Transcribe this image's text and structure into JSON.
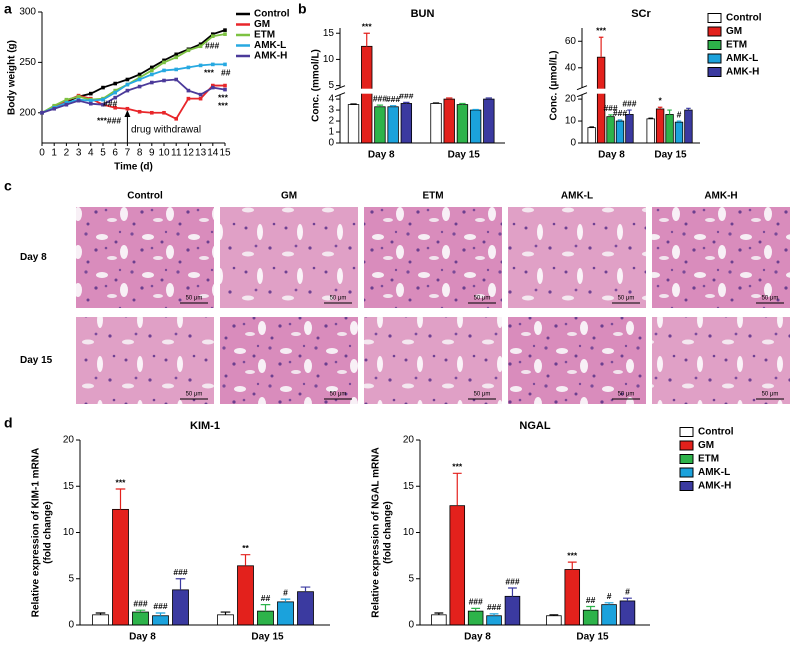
{
  "panel_labels": [
    "a",
    "b",
    "c",
    "d"
  ],
  "chart_data": [
    {
      "type": "line",
      "ylabel": "Body weight (g)",
      "xlabel": "Time (d)",
      "x": [
        0,
        1,
        2,
        3,
        4,
        5,
        6,
        7,
        8,
        9,
        10,
        11,
        12,
        13,
        14,
        15
      ],
      "xlim": [
        0,
        15
      ],
      "xticks": [
        0,
        1,
        2,
        3,
        4,
        5,
        6,
        7,
        8,
        9,
        10,
        11,
        12,
        13,
        14,
        15
      ],
      "ylim": [
        170,
        300
      ],
      "yticks": [
        200,
        250,
        300
      ],
      "legend": true,
      "series": [
        {
          "name": "Control",
          "color": "#000000",
          "values": [
            200,
            206,
            211,
            216,
            219,
            225,
            229,
            233,
            238,
            245,
            252,
            258,
            263,
            268,
            278,
            282
          ]
        },
        {
          "name": "GM",
          "color": "#e8262a",
          "values": [
            200,
            206,
            212,
            217,
            214,
            208,
            205,
            204,
            201,
            200,
            200,
            194,
            214,
            214,
            227,
            227
          ]
        },
        {
          "name": "ETM",
          "color": "#7dc242",
          "values": [
            200,
            207,
            213,
            216,
            213,
            214,
            222,
            228,
            235,
            242,
            250,
            255,
            262,
            266,
            276,
            278
          ]
        },
        {
          "name": "AMK-L",
          "color": "#27a9e1",
          "values": [
            200,
            205,
            210,
            213,
            212,
            213,
            220,
            228,
            233,
            238,
            242,
            243,
            245,
            247,
            248,
            248
          ]
        },
        {
          "name": "AMK-H",
          "color": "#4b3a9a",
          "values": [
            200,
            204,
            208,
            212,
            209,
            208,
            215,
            222,
            226,
            230,
            232,
            233,
            222,
            218,
            225,
            223
          ]
        }
      ],
      "annotations": [
        "drug withdrawal",
        "###",
        "***",
        "##",
        "***",
        "***",
        "###",
        "***###"
      ]
    },
    {
      "type": "bar",
      "title": "BUN",
      "ylabel": "Conc. (mmol/L)",
      "categories": [
        "Day 8",
        "Day 15"
      ],
      "ylim": [
        0,
        16
      ],
      "ybreak": [
        4.4,
        4.6
      ],
      "yticks": [
        0,
        1,
        2,
        3,
        4,
        5,
        10,
        15
      ],
      "series": [
        {
          "name": "Control",
          "color": "#ffffff",
          "values": [
            3.5,
            3.6
          ],
          "errors": [
            0.05,
            0.05
          ],
          "marks": [
            null,
            null
          ]
        },
        {
          "name": "GM",
          "color": "#e3211c",
          "values": [
            12.5,
            4.0
          ],
          "errors": [
            2.5,
            0.1
          ],
          "marks": [
            "***",
            null
          ]
        },
        {
          "name": "ETM",
          "color": "#2db34a",
          "values": [
            3.3,
            3.5
          ],
          "errors": [
            0.15,
            0.1
          ],
          "marks": [
            "###",
            null
          ]
        },
        {
          "name": "AMK-L",
          "color": "#1ba2dc",
          "values": [
            3.3,
            3.0
          ],
          "errors": [
            0.1,
            0.05
          ],
          "marks": [
            "###",
            null
          ]
        },
        {
          "name": "AMK-H",
          "color": "#3b3aa0",
          "values": [
            3.6,
            4.0
          ],
          "errors": [
            0.1,
            0.1
          ],
          "marks": [
            "###",
            null
          ]
        }
      ]
    },
    {
      "type": "bar",
      "title": "SCr",
      "ylabel": "Conc. (μmol/L)",
      "categories": [
        "Day 8",
        "Day 15"
      ],
      "ylim": [
        0,
        70
      ],
      "ybreak": [
        22,
        25
      ],
      "yticks": [
        0,
        10,
        20,
        40,
        60
      ],
      "legend": true,
      "series": [
        {
          "name": "Control",
          "color": "#ffffff",
          "values": [
            7,
            11
          ],
          "errors": [
            0.3,
            0.3
          ],
          "marks": [
            null,
            null
          ]
        },
        {
          "name": "GM",
          "color": "#e3211c",
          "values": [
            48,
            15.5
          ],
          "errors": [
            15,
            0.8
          ],
          "marks": [
            "***",
            "*"
          ]
        },
        {
          "name": "ETM",
          "color": "#2db34a",
          "values": [
            12,
            13
          ],
          "errors": [
            0.8,
            2
          ],
          "marks": [
            "###",
            null
          ]
        },
        {
          "name": "AMK-L",
          "color": "#1ba2dc",
          "values": [
            10,
            9.5
          ],
          "errors": [
            0.5,
            0.5
          ],
          "marks": [
            "###",
            "#"
          ]
        },
        {
          "name": "AMK-H",
          "color": "#3b3aa0",
          "values": [
            13,
            15
          ],
          "errors": [
            2,
            0.8
          ],
          "marks": [
            "###",
            null
          ]
        }
      ]
    },
    {
      "type": "bar",
      "title": "KIM-1",
      "ylabel": [
        "Relative expression of KIM-1 mRNA",
        "(fold change)"
      ],
      "categories": [
        "Day 8",
        "Day 15"
      ],
      "ylim": [
        0,
        20
      ],
      "yticks": [
        0,
        5,
        10,
        15,
        20
      ],
      "series": [
        {
          "name": "Control",
          "color": "#ffffff",
          "values": [
            1.1,
            1.1
          ],
          "errors": [
            0.2,
            0.3
          ],
          "marks": [
            null,
            null
          ]
        },
        {
          "name": "GM",
          "color": "#e3211c",
          "values": [
            12.5,
            6.4
          ],
          "errors": [
            2.2,
            1.2
          ],
          "marks": [
            "***",
            "**"
          ]
        },
        {
          "name": "ETM",
          "color": "#2db34a",
          "values": [
            1.4,
            1.5
          ],
          "errors": [
            0.2,
            0.7
          ],
          "marks": [
            "###",
            "##"
          ]
        },
        {
          "name": "AMK-L",
          "color": "#1ba2dc",
          "values": [
            1.0,
            2.5
          ],
          "errors": [
            0.3,
            0.3
          ],
          "marks": [
            "###",
            "#"
          ]
        },
        {
          "name": "AMK-H",
          "color": "#3b3aa0",
          "values": [
            3.8,
            3.6
          ],
          "errors": [
            1.2,
            0.5
          ],
          "marks": [
            "###",
            null
          ]
        }
      ]
    },
    {
      "type": "bar",
      "title": "NGAL",
      "ylabel": [
        "Relative expression of NGAL mRNA",
        "(fold change)"
      ],
      "categories": [
        "Day 8",
        "Day 15"
      ],
      "ylim": [
        0,
        20
      ],
      "yticks": [
        0,
        5,
        10,
        15,
        20
      ],
      "legend": true,
      "series": [
        {
          "name": "Control",
          "color": "#ffffff",
          "values": [
            1.1,
            1.0
          ],
          "errors": [
            0.2,
            0.1
          ],
          "marks": [
            null,
            null
          ]
        },
        {
          "name": "GM",
          "color": "#e3211c",
          "values": [
            12.9,
            6.0
          ],
          "errors": [
            3.5,
            0.8
          ],
          "marks": [
            "***",
            "***"
          ]
        },
        {
          "name": "ETM",
          "color": "#2db34a",
          "values": [
            1.5,
            1.6
          ],
          "errors": [
            0.3,
            0.4
          ],
          "marks": [
            "###",
            "##"
          ]
        },
        {
          "name": "AMK-L",
          "color": "#1ba2dc",
          "values": [
            1.0,
            2.2
          ],
          "errors": [
            0.2,
            0.2
          ],
          "marks": [
            "###",
            "#"
          ]
        },
        {
          "name": "AMK-H",
          "color": "#3b3aa0",
          "values": [
            3.1,
            2.6
          ],
          "errors": [
            0.9,
            0.3
          ],
          "marks": [
            "###",
            "#"
          ]
        }
      ]
    }
  ],
  "histology": {
    "columns": [
      "Control",
      "GM",
      "ETM",
      "AMK-L",
      "AMK-H"
    ],
    "rows": [
      "Day 8",
      "Day 15"
    ],
    "scale_bar": "50 μm"
  }
}
